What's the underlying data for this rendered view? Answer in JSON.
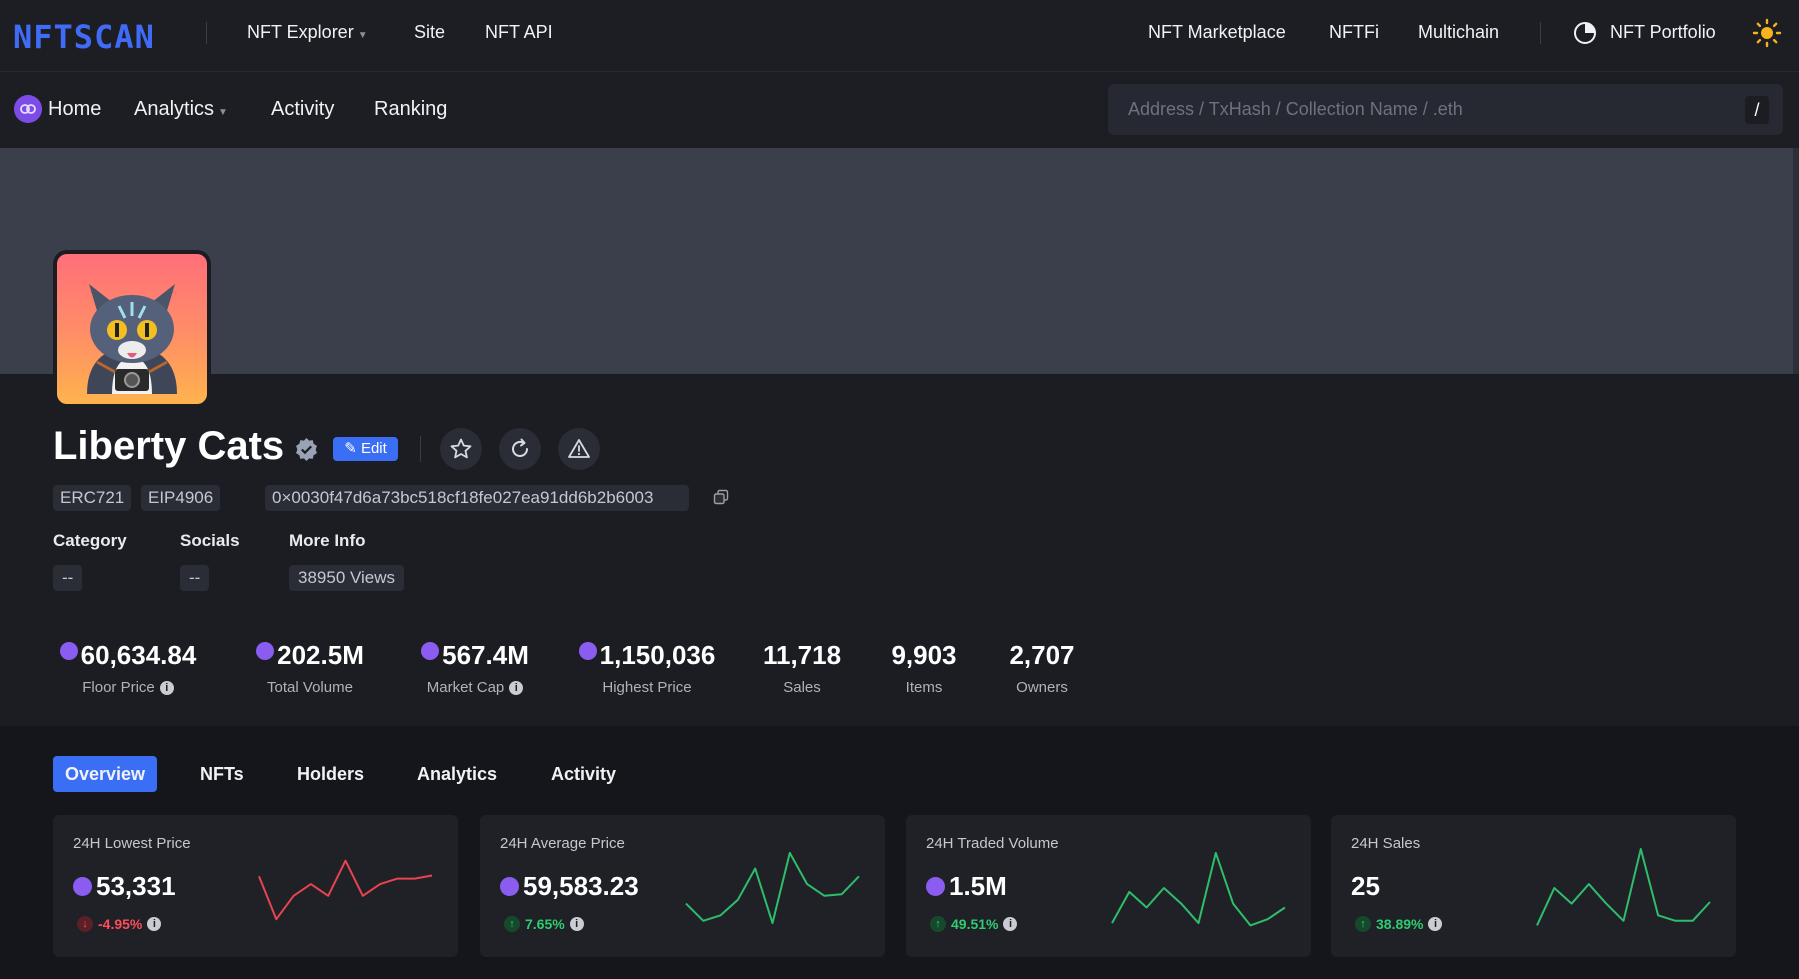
{
  "brand": {
    "logo": "NFTSCAN",
    "accent": "#3f6bf7"
  },
  "top_nav": {
    "nft_explorer": "NFT Explorer",
    "site": "Site",
    "nft_api": "NFT API",
    "nft_marketplace": "NFT Marketplace",
    "nftfi": "NFTFi",
    "multichain": "Multichain",
    "nft_portfolio": "NFT Portfolio"
  },
  "sub_nav": {
    "home": "Home",
    "analytics": "Analytics",
    "activity": "Activity",
    "ranking": "Ranking"
  },
  "search": {
    "placeholder": "Address / TxHash / Collection Name / .eth",
    "shortcut": "/"
  },
  "collection": {
    "name": "Liberty Cats",
    "edit_label": "✎ Edit",
    "tags": [
      "ERC721",
      "EIP4906"
    ],
    "contract": "0×0030f47d6a73bc518cf18fe027ea91dd6b2b6003",
    "meta": {
      "category_label": "Category",
      "category_value": "--",
      "socials_label": "Socials",
      "socials_value": "--",
      "more_info_label": "More Info",
      "views": "38950 Views"
    }
  },
  "stats": [
    {
      "value": "60,634.84",
      "label": "Floor Price"
    },
    {
      "value": "202.5M",
      "label": "Total Volume"
    },
    {
      "value": "567.4M",
      "label": "Market Cap"
    },
    {
      "value": "1,150,036",
      "label": "Highest Price"
    },
    {
      "value": "11,718",
      "label": "Sales"
    },
    {
      "value": "9,903",
      "label": "Items"
    },
    {
      "value": "2,707",
      "label": "Owners"
    }
  ],
  "tabs": [
    "Overview",
    "NFTs",
    "Holders",
    "Analytics",
    "Activity"
  ],
  "cards": [
    {
      "title": "24H Lowest Price",
      "value": "53,331",
      "change": "-4.95%",
      "direction": "down",
      "spark": [
        0.35,
        0.9,
        0.6,
        0.45,
        0.6,
        0.15,
        0.6,
        0.45,
        0.38,
        0.38,
        0.34
      ]
    },
    {
      "title": "24H Average Price",
      "value": "59,583.23",
      "change": "7.65%",
      "direction": "up",
      "spark": [
        0.7,
        0.92,
        0.85,
        0.65,
        0.25,
        0.95,
        0.05,
        0.45,
        0.6,
        0.58,
        0.35
      ]
    },
    {
      "title": "24H Traded Volume",
      "value": "1.5M",
      "change": "49.51%",
      "direction": "up",
      "spark": [
        0.95,
        0.55,
        0.75,
        0.5,
        0.7,
        0.95,
        0.05,
        0.7,
        0.98,
        0.9,
        0.75
      ]
    },
    {
      "title": "24H Sales",
      "value": "25",
      "change": "38.89%",
      "direction": "up",
      "spark": [
        0.98,
        0.5,
        0.7,
        0.45,
        0.7,
        0.92,
        0.0,
        0.85,
        0.92,
        0.92,
        0.68
      ]
    }
  ]
}
